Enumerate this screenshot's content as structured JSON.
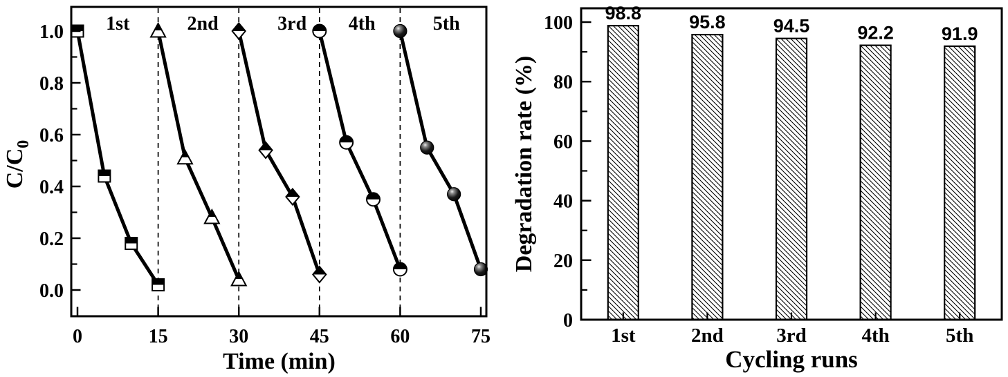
{
  "figure": {
    "background_color": "#ffffff",
    "ink_color": "#000000"
  },
  "chart_data": [
    {
      "type": "line",
      "panel": "left",
      "xlabel": "Time (min)",
      "ylabel": {
        "base": "C/C",
        "sub": "0"
      },
      "xticks": [
        0,
        15,
        30,
        45,
        60,
        75
      ],
      "xtick_labels": [
        "0",
        "15",
        "30",
        "45",
        "60",
        "75"
      ],
      "ytick_values": [
        0.0,
        0.2,
        0.4,
        0.6,
        0.8,
        1.0
      ],
      "ytick_labels": [
        "0.0",
        "0.2",
        "0.4",
        "0.6",
        "0.8",
        "1.0"
      ],
      "minor_ytick_values": [
        0.1,
        0.3,
        0.5,
        0.7,
        0.9
      ],
      "xlim": [
        -1.2,
        76
      ],
      "ylim": [
        -0.1,
        1.09
      ],
      "grid": false,
      "legend_position": "none",
      "dashed_vlines_x": [
        15,
        30,
        45,
        60
      ],
      "annotations": [
        {
          "text": "1st",
          "x": 7.5,
          "y": 1.03
        },
        {
          "text": "2nd",
          "x": 23.3,
          "y": 1.03
        },
        {
          "text": "3rd",
          "x": 39.9,
          "y": 1.03
        },
        {
          "text": "4th",
          "x": 52.9,
          "y": 1.03
        },
        {
          "text": "5th",
          "x": 68.6,
          "y": 1.03
        }
      ],
      "series": [
        {
          "name": "1st run",
          "marker": "half-filled-square",
          "color": "#000000",
          "points": [
            [
              0,
              1.0
            ],
            [
              5,
              0.44
            ],
            [
              10,
              0.18
            ],
            [
              15,
              0.02
            ]
          ]
        },
        {
          "name": "2nd run",
          "marker": "half-filled-triangle-up",
          "color": "#000000",
          "points": [
            [
              15,
              1.0
            ],
            [
              20,
              0.51
            ],
            [
              25,
              0.28
            ],
            [
              30,
              0.04
            ]
          ]
        },
        {
          "name": "3rd run",
          "marker": "half-filled-diamond",
          "color": "#000000",
          "points": [
            [
              30,
              1.0
            ],
            [
              35,
              0.54
            ],
            [
              40,
              0.36
            ],
            [
              45,
              0.06
            ]
          ]
        },
        {
          "name": "4th run",
          "marker": "half-filled-circle",
          "color": "#000000",
          "points": [
            [
              45,
              1.0
            ],
            [
              50,
              0.57
            ],
            [
              55,
              0.35
            ],
            [
              60,
              0.08
            ]
          ]
        },
        {
          "name": "5th run",
          "marker": "sphere",
          "color": "#000000",
          "points": [
            [
              60,
              1.0
            ],
            [
              65,
              0.55
            ],
            [
              70,
              0.37
            ],
            [
              75,
              0.08
            ]
          ]
        }
      ]
    },
    {
      "type": "bar",
      "panel": "right",
      "xlabel": "Cycling runs",
      "ylabel": "Degradation rate (%)",
      "categories": [
        "1st",
        "2nd",
        "3rd",
        "4th",
        "5th"
      ],
      "values": [
        98.8,
        95.8,
        94.5,
        92.2,
        91.9
      ],
      "value_labels": [
        "98.8",
        "95.8",
        "94.5",
        "92.2",
        "91.9"
      ],
      "ytick_values": [
        0,
        20,
        40,
        60,
        80,
        100
      ],
      "ytick_labels": [
        "0",
        "20",
        "40",
        "60",
        "80",
        "100"
      ],
      "minor_ytick_values": [
        10,
        30,
        50,
        70,
        90
      ],
      "ylim": [
        0,
        104.7
      ],
      "grid": false,
      "legend_position": "none",
      "bar_fill": "hatch-diagonal-backslash",
      "bar_edge_color": "#000000"
    }
  ]
}
